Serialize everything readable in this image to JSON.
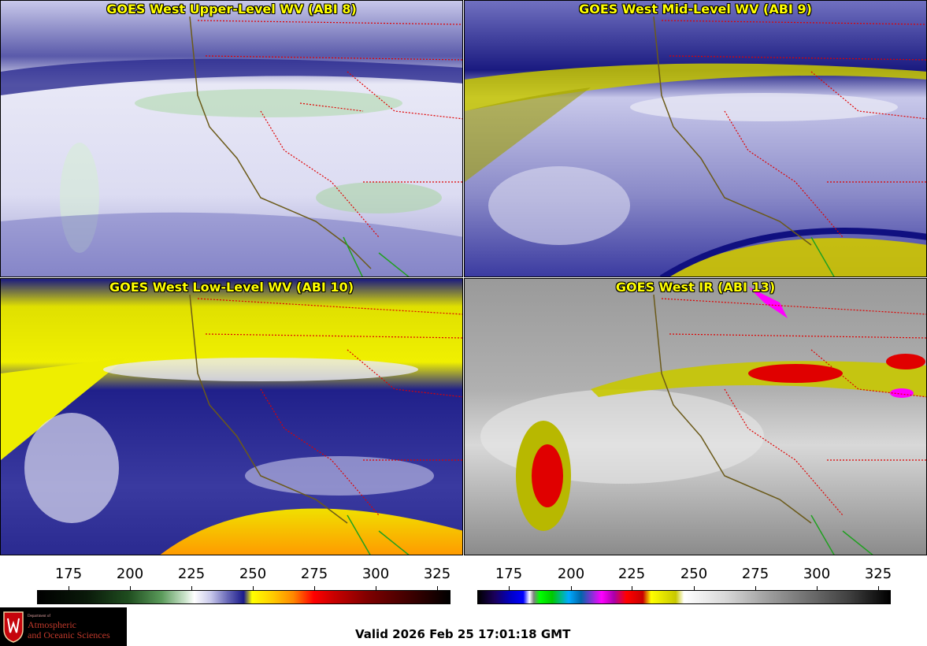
{
  "panels": {
    "upper": {
      "title": "GOES West Upper-Level WV (ABI 8)"
    },
    "mid": {
      "title": "GOES West Mid-Level WV (ABI 9)"
    },
    "low": {
      "title": "GOES West Low-Level WV (ABI 10)"
    },
    "ir": {
      "title": "GOES West IR (ABI 13)"
    }
  },
  "colorbars": {
    "wv": {
      "ticks": [
        "175",
        "200",
        "225",
        "250",
        "275",
        "300",
        "325"
      ]
    },
    "ir": {
      "ticks": [
        "175",
        "200",
        "225",
        "250",
        "275",
        "300",
        "325"
      ]
    }
  },
  "logo": {
    "small": "Department of",
    "line1": "Atmospheric",
    "line2": "and Oceanic Sciences"
  },
  "valid_time": "Valid 2026 Feb 25 17:01:18 GMT"
}
